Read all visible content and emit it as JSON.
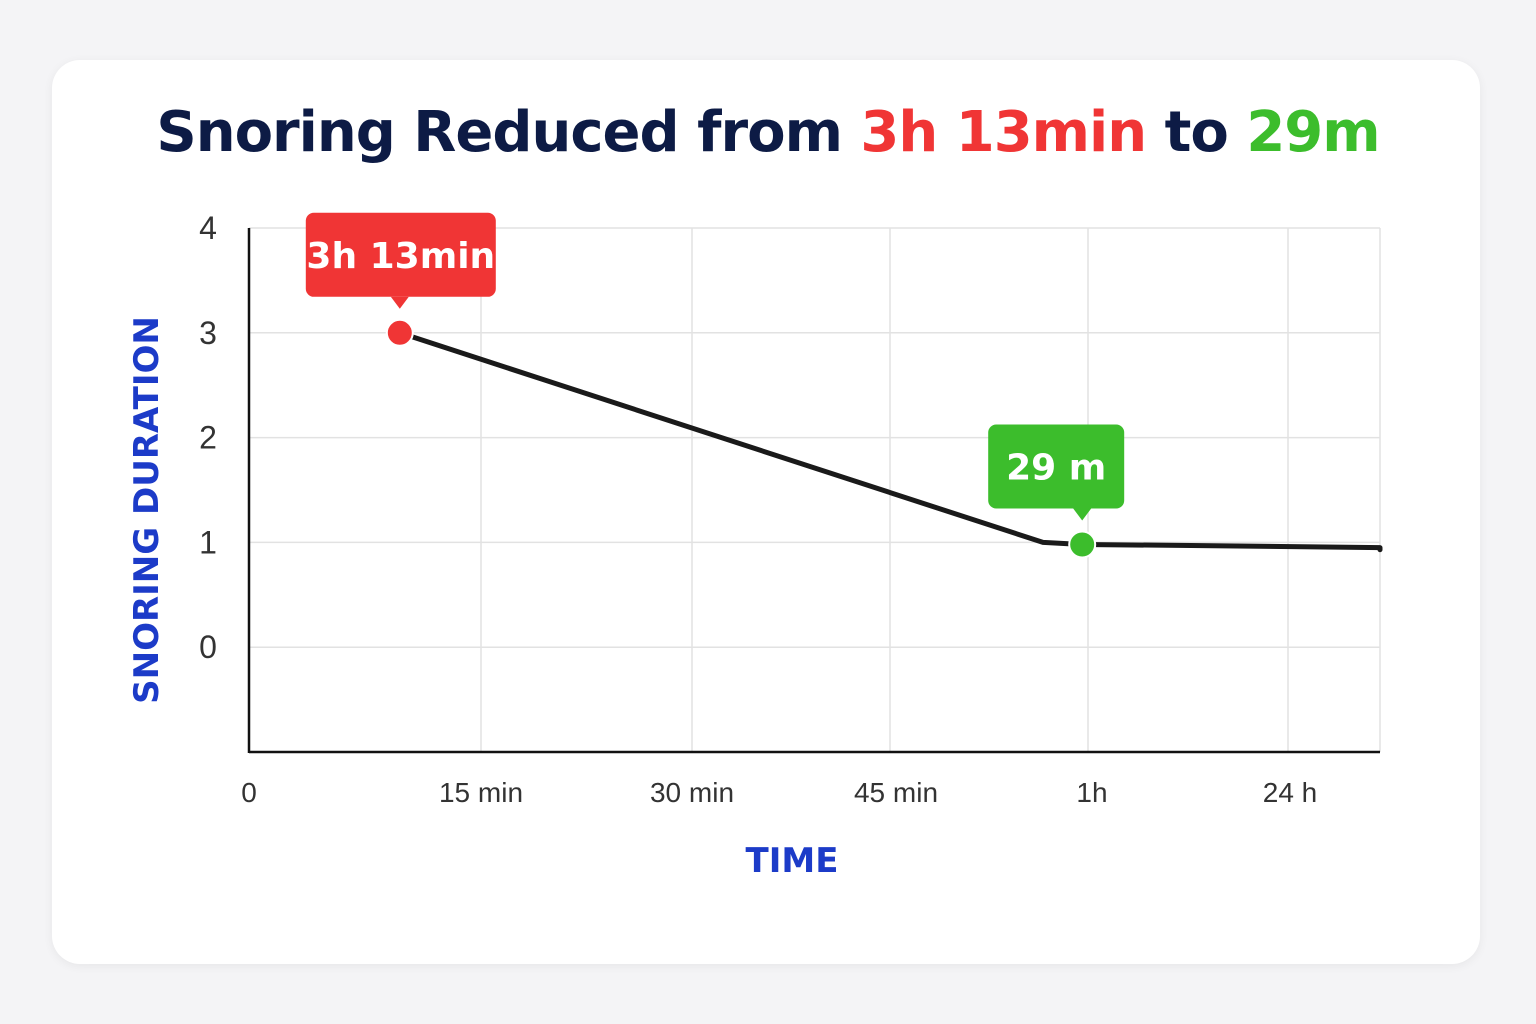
{
  "title": {
    "prefix": "Snoring Reduced from ",
    "from_value": "3h 13min",
    "middle": " to ",
    "to_value": "29m"
  },
  "colors": {
    "title": "#0d1b45",
    "before": "#f03535",
    "after": "#3cbd2c",
    "axis_title": "#1c3bc8",
    "line": "#1a1a1a",
    "grid": "#e2e2e2"
  },
  "chart_data": {
    "type": "line",
    "xlabel": "TIME",
    "ylabel": "SNORING DURATION",
    "x_ticks": [
      "0",
      "15 min",
      "30 min",
      "45 min",
      "1h",
      "24 h"
    ],
    "y_ticks": [
      "0",
      "1",
      "2",
      "3",
      "4"
    ],
    "ylim": [
      -1,
      4
    ],
    "grid": true,
    "series": [
      {
        "x": [
          0.65,
          3.75,
          3.95,
          4.5,
          5.5,
          6.0,
          6.55
        ],
        "y": [
          3.0,
          1.0,
          0.98,
          0.97,
          0.95,
          0.94,
          0.93
        ]
      }
    ],
    "annotations": [
      {
        "label": "3h 13min",
        "x": 0.65,
        "y": 3.0,
        "color": "#f03535"
      },
      {
        "label": "29 m",
        "x": 3.95,
        "y": 0.98,
        "color": "#3cbd2c"
      }
    ]
  }
}
